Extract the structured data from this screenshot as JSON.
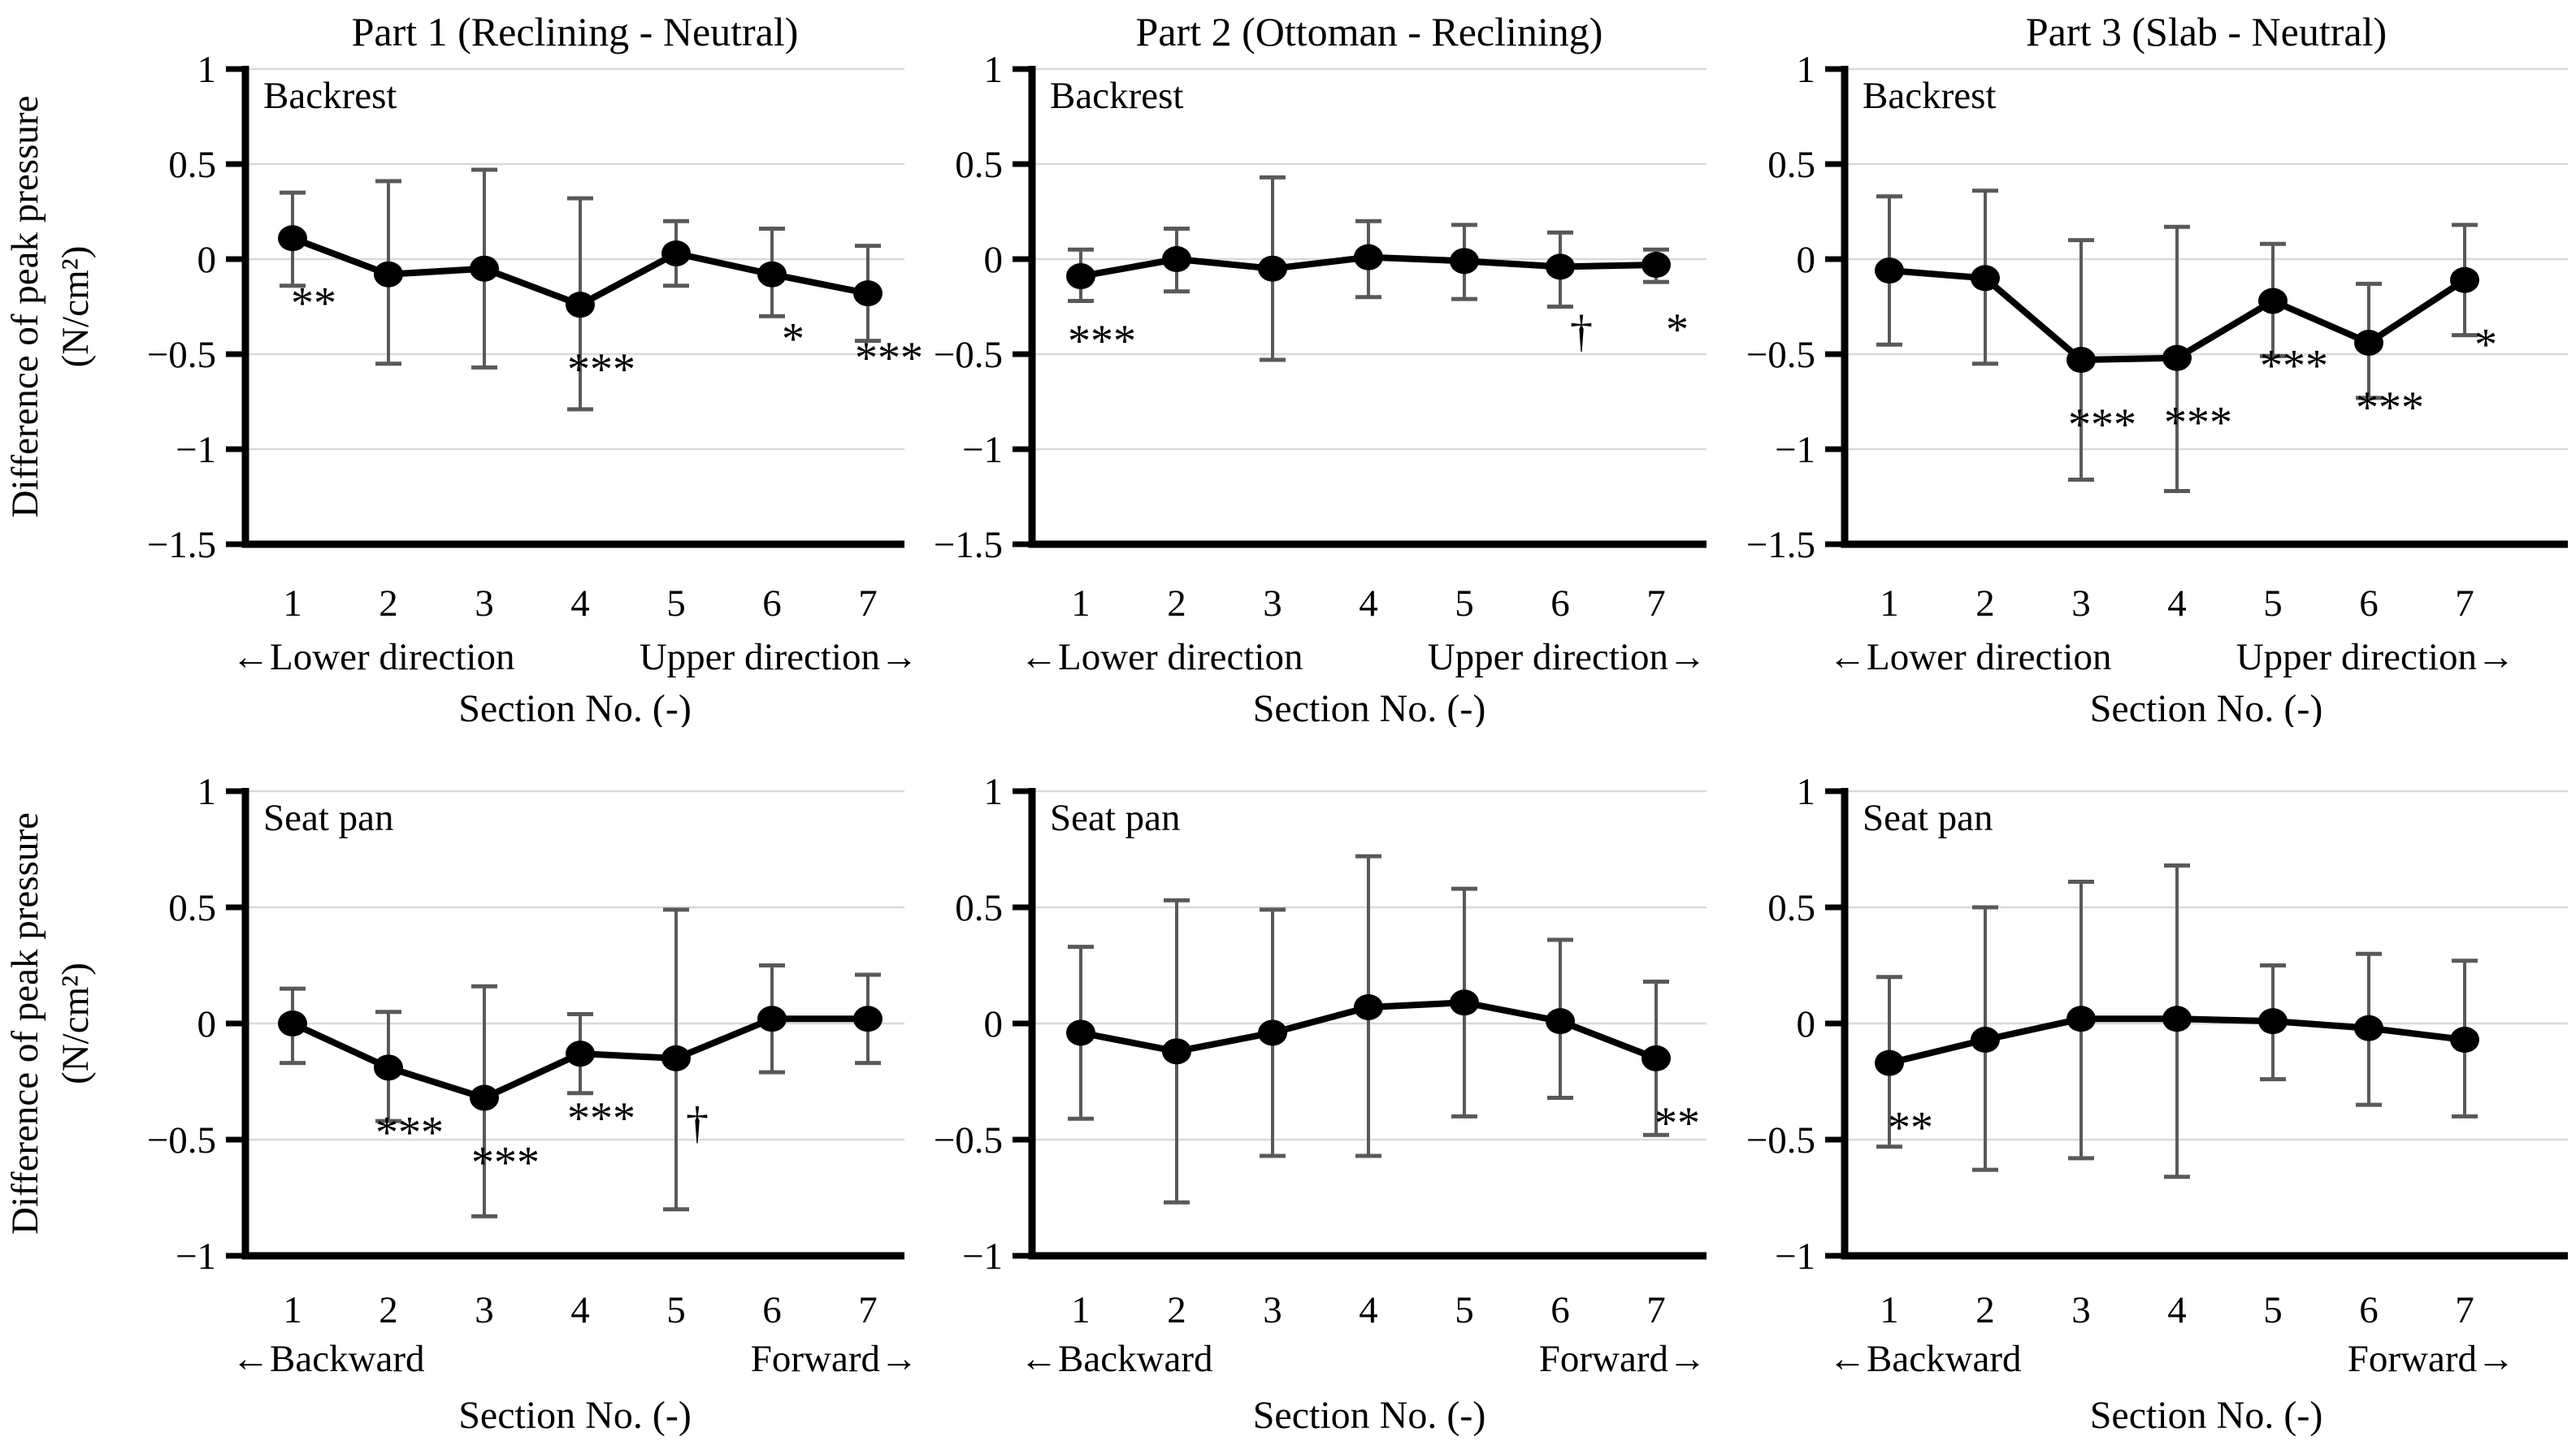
{
  "figure": {
    "y_axis_label_line1": "Difference of peak pressure",
    "y_axis_label_line2": "(N/cm²)",
    "x_axis_label": "Section No. (-)",
    "x_ticks": [
      "1",
      "2",
      "3",
      "4",
      "5",
      "6",
      "7"
    ],
    "columns": [
      {
        "title": "Part 1 (Reclining - Neutral)"
      },
      {
        "title": "Part 2 (Ottoman - Reclining)"
      },
      {
        "title": "Part 3 (Slab - Neutral)"
      }
    ],
    "rows": [
      {
        "panel_label": "Backrest",
        "direction_left": "←Lower direction",
        "direction_right": "Upper direction→",
        "y_ticks": [
          {
            "v": 1,
            "label": "1"
          },
          {
            "v": 0.5,
            "label": "0.5"
          },
          {
            "v": 0,
            "label": "0"
          },
          {
            "v": -0.5,
            "label": "−0.5"
          },
          {
            "v": -1,
            "label": "−1"
          },
          {
            "v": -1.5,
            "label": "−1.5"
          }
        ]
      },
      {
        "panel_label": "Seat pan",
        "direction_left": "←Backward",
        "direction_right": "Forward→",
        "y_ticks": [
          {
            "v": 1,
            "label": "1"
          },
          {
            "v": 0.5,
            "label": "0.5"
          },
          {
            "v": 0,
            "label": "0"
          },
          {
            "v": -0.5,
            "label": "−0.5"
          },
          {
            "v": -1,
            "label": "−1"
          }
        ]
      }
    ]
  },
  "colors": {
    "ink": "#000000",
    "grid": "#d9d9d9",
    "error_bar": "#595959",
    "background": "#ffffff"
  },
  "chart_data": [
    {
      "type": "line",
      "part": "Part 1 (Reclining - Neutral)",
      "panel": "Backrest",
      "xlabel": "Section No. (-)",
      "ylabel": "Difference of peak pressure (N/cm²)",
      "ylim": [
        -1.5,
        1
      ],
      "x": [
        1,
        2,
        3,
        4,
        5,
        6,
        7
      ],
      "mean": [
        0.11,
        -0.08,
        -0.05,
        -0.24,
        0.03,
        -0.08,
        -0.18
      ],
      "err_low": [
        -0.14,
        -0.55,
        -0.57,
        -0.79,
        -0.14,
        -0.3,
        -0.43
      ],
      "err_high": [
        0.35,
        0.41,
        0.47,
        0.32,
        0.2,
        0.16,
        0.07
      ],
      "significance": [
        "**",
        "",
        "",
        "***",
        "",
        "*",
        "***"
      ]
    },
    {
      "type": "line",
      "part": "Part 2 (Ottoman - Reclining)",
      "panel": "Backrest",
      "xlabel": "Section No. (-)",
      "ylabel": "Difference of peak pressure (N/cm²)",
      "ylim": [
        -1.5,
        1
      ],
      "x": [
        1,
        2,
        3,
        4,
        5,
        6,
        7
      ],
      "mean": [
        -0.09,
        0.0,
        -0.05,
        0.01,
        -0.01,
        -0.04,
        -0.03
      ],
      "err_low": [
        -0.22,
        -0.17,
        -0.53,
        -0.2,
        -0.21,
        -0.25,
        -0.12
      ],
      "err_high": [
        0.05,
        0.16,
        0.43,
        0.2,
        0.18,
        0.14,
        0.05
      ],
      "significance": [
        "***",
        "",
        "",
        "",
        "",
        "†",
        "*"
      ]
    },
    {
      "type": "line",
      "part": "Part 3 (Slab - Neutral)",
      "panel": "Backrest",
      "xlabel": "Section No. (-)",
      "ylabel": "Difference of peak pressure (N/cm²)",
      "ylim": [
        -1.5,
        1
      ],
      "x": [
        1,
        2,
        3,
        4,
        5,
        6,
        7
      ],
      "mean": [
        -0.06,
        -0.1,
        -0.53,
        -0.52,
        -0.22,
        -0.44,
        -0.11
      ],
      "err_low": [
        -0.45,
        -0.55,
        -1.16,
        -1.22,
        -0.51,
        -0.73,
        -0.4
      ],
      "err_high": [
        0.33,
        0.36,
        0.1,
        0.17,
        0.08,
        -0.13,
        0.18
      ],
      "significance": [
        "",
        "",
        "***",
        "***",
        "***",
        "***",
        "*"
      ]
    },
    {
      "type": "line",
      "part": "Part 1 (Reclining - Neutral)",
      "panel": "Seat pan",
      "xlabel": "Section No. (-)",
      "ylabel": "Difference of peak pressure (N/cm²)",
      "ylim": [
        -1,
        1
      ],
      "x": [
        1,
        2,
        3,
        4,
        5,
        6,
        7
      ],
      "mean": [
        0.0,
        -0.19,
        -0.32,
        -0.13,
        -0.15,
        0.02,
        0.02
      ],
      "err_low": [
        -0.17,
        -0.42,
        -0.83,
        -0.3,
        -0.8,
        -0.21,
        -0.17
      ],
      "err_high": [
        0.15,
        0.05,
        0.16,
        0.04,
        0.49,
        0.25,
        0.21
      ],
      "significance": [
        "",
        "***",
        "***",
        "***",
        "†",
        "",
        ""
      ]
    },
    {
      "type": "line",
      "part": "Part 2 (Ottoman - Reclining)",
      "panel": "Seat pan",
      "xlabel": "Section No. (-)",
      "ylabel": "Difference of peak pressure (N/cm²)",
      "ylim": [
        -1,
        1
      ],
      "x": [
        1,
        2,
        3,
        4,
        5,
        6,
        7
      ],
      "mean": [
        -0.04,
        -0.12,
        -0.04,
        0.07,
        0.09,
        0.01,
        -0.15
      ],
      "err_low": [
        -0.41,
        -0.77,
        -0.57,
        -0.57,
        -0.4,
        -0.32,
        -0.48
      ],
      "err_high": [
        0.33,
        0.53,
        0.49,
        0.72,
        0.58,
        0.36,
        0.18
      ],
      "significance": [
        "",
        "",
        "",
        "",
        "",
        "",
        "**"
      ]
    },
    {
      "type": "line",
      "part": "Part 3 (Slab - Neutral)",
      "panel": "Seat pan",
      "xlabel": "Section No. (-)",
      "ylabel": "Difference of peak pressure (N/cm²)",
      "ylim": [
        -1,
        1
      ],
      "x": [
        1,
        2,
        3,
        4,
        5,
        6,
        7
      ],
      "mean": [
        -0.17,
        -0.07,
        0.02,
        0.02,
        0.01,
        -0.02,
        -0.07
      ],
      "err_low": [
        -0.53,
        -0.63,
        -0.58,
        -0.66,
        -0.24,
        -0.35,
        -0.4
      ],
      "err_high": [
        0.2,
        0.5,
        0.61,
        0.68,
        0.25,
        0.3,
        0.27
      ],
      "significance": [
        "**",
        "",
        "",
        "",
        "",
        "",
        ""
      ]
    }
  ]
}
